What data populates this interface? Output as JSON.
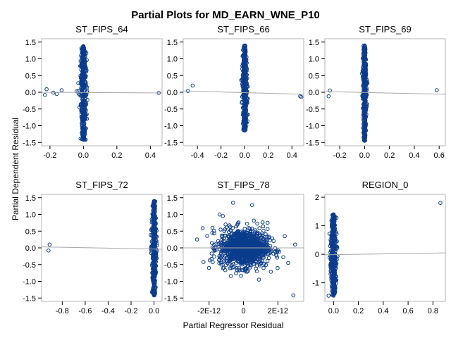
{
  "colors": {
    "point": "#0b3c8c",
    "fit_line": "#a8a8a8",
    "frame": "#b4b4b4",
    "background": "#ffffff"
  },
  "chart_data": {
    "type": "scatter",
    "title": "Partial Plots for MD_EARN_WNE_P10",
    "xlabel": "Partial Regressor Residual",
    "ylabel": "Partial Dependent Residual",
    "grid": false,
    "legend": "none",
    "panels": [
      {
        "title": "ST_FIPS_64",
        "xlim": [
          -0.25,
          0.47
        ],
        "ylim": [
          -1.6,
          1.6
        ],
        "xticks": [
          -0.2,
          0.0,
          0.2,
          0.4
        ],
        "xtick_labels": [
          "-0.2",
          "0.0",
          "0.2",
          "0.4"
        ],
        "yticks": [
          -1.5,
          -1.0,
          -0.5,
          0.0,
          0.5,
          1.0,
          1.5
        ],
        "ytick_labels": [
          "-1.5",
          "-1.0",
          "-0.5",
          "0.0",
          "0.5",
          "1.0",
          "1.5"
        ],
        "fit_line": {
          "x": [
            -0.25,
            0.47
          ],
          "y": [
            0.0,
            -0.02
          ]
        },
        "core": {
          "x_center": 0.0,
          "x_spread": 0.012,
          "y_min": -1.42,
          "y_max": 1.38
        },
        "outliers": [
          [
            -0.22,
            0.09
          ],
          [
            -0.23,
            -0.08
          ],
          [
            -0.18,
            -0.01
          ],
          [
            -0.16,
            -0.05
          ],
          [
            -0.13,
            0.06
          ],
          [
            -0.04,
            0.03
          ],
          [
            0.45,
            -0.02
          ],
          [
            0.0,
            1.38
          ],
          [
            0.0,
            -1.42
          ]
        ]
      },
      {
        "title": "ST_FIPS_66",
        "xlim": [
          -0.52,
          0.5
        ],
        "ylim": [
          -1.6,
          1.6
        ],
        "xticks": [
          -0.4,
          -0.2,
          0.0,
          0.2,
          0.4
        ],
        "xtick_labels": [
          "-0.4",
          "-0.2",
          "0.0",
          "0.2",
          "0.4"
        ],
        "yticks": [
          -1.5,
          -1.0,
          -0.5,
          0.0,
          0.5,
          1.0,
          1.5
        ],
        "ytick_labels": [
          "-1.5",
          "-1.0",
          "-0.5",
          "0.0",
          "0.5",
          "1.0",
          "1.5"
        ],
        "fit_line": {
          "x": [
            -0.52,
            0.5
          ],
          "y": [
            0.04,
            -0.06
          ]
        },
        "core": {
          "x_center": 0.0,
          "x_spread": 0.012,
          "y_min": -1.13,
          "y_max": 1.4
        },
        "outliers": [
          [
            -0.44,
            0.2
          ],
          [
            -0.48,
            0.04
          ],
          [
            0.47,
            -0.12
          ],
          [
            0.48,
            -0.14
          ],
          [
            0.0,
            -1.15
          ]
        ]
      },
      {
        "title": "ST_FIPS_69",
        "xlim": [
          -0.32,
          0.65
        ],
        "ylim": [
          -1.6,
          1.6
        ],
        "xticks": [
          -0.2,
          0.0,
          0.2,
          0.4,
          0.6
        ],
        "xtick_labels": [
          "-0.2",
          "0.0",
          "0.2",
          "0.4",
          "0.6"
        ],
        "yticks": [
          -1.5,
          -1.0,
          -0.5,
          0.0,
          0.5,
          1.0,
          1.5
        ],
        "ytick_labels": [
          "-1.5",
          "-1.0",
          "-0.5",
          "0.0",
          "0.5",
          "1.0",
          "1.5"
        ],
        "fit_line": {
          "x": [
            -0.32,
            0.65
          ],
          "y": [
            0.02,
            -0.06
          ]
        },
        "core": {
          "x_center": 0.0,
          "x_spread": 0.01,
          "y_min": -1.45,
          "y_max": 1.4
        },
        "outliers": [
          [
            -0.28,
            0.05
          ],
          [
            -0.29,
            -0.12
          ],
          [
            0.58,
            0.06
          ],
          [
            0.0,
            -1.45
          ],
          [
            0.0,
            1.4
          ]
        ]
      },
      {
        "title": "ST_FIPS_72",
        "xlim": [
          -0.98,
          0.07
        ],
        "ylim": [
          -1.6,
          1.6
        ],
        "xticks": [
          -0.8,
          -0.6,
          -0.4,
          -0.2,
          0.0
        ],
        "xtick_labels": [
          "-0.8",
          "-0.6",
          "-0.4",
          "-0.2",
          "0.0"
        ],
        "yticks": [
          -1.5,
          -1.0,
          -0.5,
          0.0,
          0.5,
          1.0,
          1.5
        ],
        "ytick_labels": [
          "-1.5",
          "-1.0",
          "-0.5",
          "0.0",
          "0.5",
          "1.0",
          "1.5"
        ],
        "fit_line": {
          "x": [
            -0.98,
            0.07
          ],
          "y": [
            0.03,
            -0.04
          ]
        },
        "core": {
          "x_center": 0.0,
          "x_spread": 0.012,
          "y_min": -1.42,
          "y_max": 1.4
        },
        "outliers": [
          [
            -0.91,
            0.1
          ],
          [
            -0.92,
            -0.08
          ],
          [
            0.0,
            -1.42
          ],
          [
            0.0,
            1.4
          ]
        ]
      },
      {
        "title": "ST_FIPS_78",
        "xlim": [
          -3.5e-12,
          3.5e-12
        ],
        "ylim": [
          -1.6,
          1.6
        ],
        "xticks": [
          -2e-12,
          0,
          2e-12
        ],
        "xtick_labels": [
          "-2E-12",
          "0",
          "2E-12"
        ],
        "yticks": [
          -1.5,
          -1.0,
          -0.5,
          0.0,
          0.5,
          1.0,
          1.5
        ],
        "ytick_labels": [
          "-1.5",
          "-1.0",
          "-0.5",
          "0.0",
          "0.5",
          "1.0",
          "1.5"
        ],
        "fit_line": {
          "x": [
            -3.5e-12,
            3.5e-12
          ],
          "y": [
            0.0,
            0.0
          ]
        },
        "cloud": {
          "x_sd": 7e-13,
          "y_sd": 0.28
        },
        "outliers": [
          [
            3e-12,
            0.1
          ],
          [
            -2.7e-12,
            0.25
          ],
          [
            2.6e-12,
            -0.45
          ],
          [
            -2e-12,
            -0.6
          ],
          [
            5e-13,
            1.28
          ],
          [
            -6e-13,
            1.35
          ],
          [
            1.4e-12,
            0.75
          ],
          [
            -1.2e-12,
            0.95
          ],
          [
            2.9e-12,
            -1.42
          ],
          [
            9e-13,
            -0.95
          ],
          [
            -1.8e-12,
            0.6
          ],
          [
            2.4e-12,
            0.35
          ]
        ]
      },
      {
        "title": "REGION_0",
        "xlim": [
          -0.07,
          0.9
        ],
        "ylim": [
          -1.65,
          2.1
        ],
        "xticks": [
          0.0,
          0.2,
          0.4,
          0.6,
          0.8
        ],
        "xtick_labels": [
          "0.0",
          "0.2",
          "0.4",
          "0.6",
          "0.8"
        ],
        "yticks": [
          -1,
          0,
          1,
          2
        ],
        "ytick_labels": [
          "-1",
          "0",
          "1",
          "2"
        ],
        "fit_line": {
          "x": [
            -0.07,
            0.9
          ],
          "y": [
            -0.02,
            0.05
          ]
        },
        "core": {
          "x_center": 0.0,
          "x_spread": 0.015,
          "y_min": -1.45,
          "y_max": 1.4
        },
        "outliers": [
          [
            0.86,
            1.8
          ],
          [
            -0.04,
            -1.45
          ],
          [
            0.0,
            1.4
          ]
        ]
      }
    ]
  }
}
